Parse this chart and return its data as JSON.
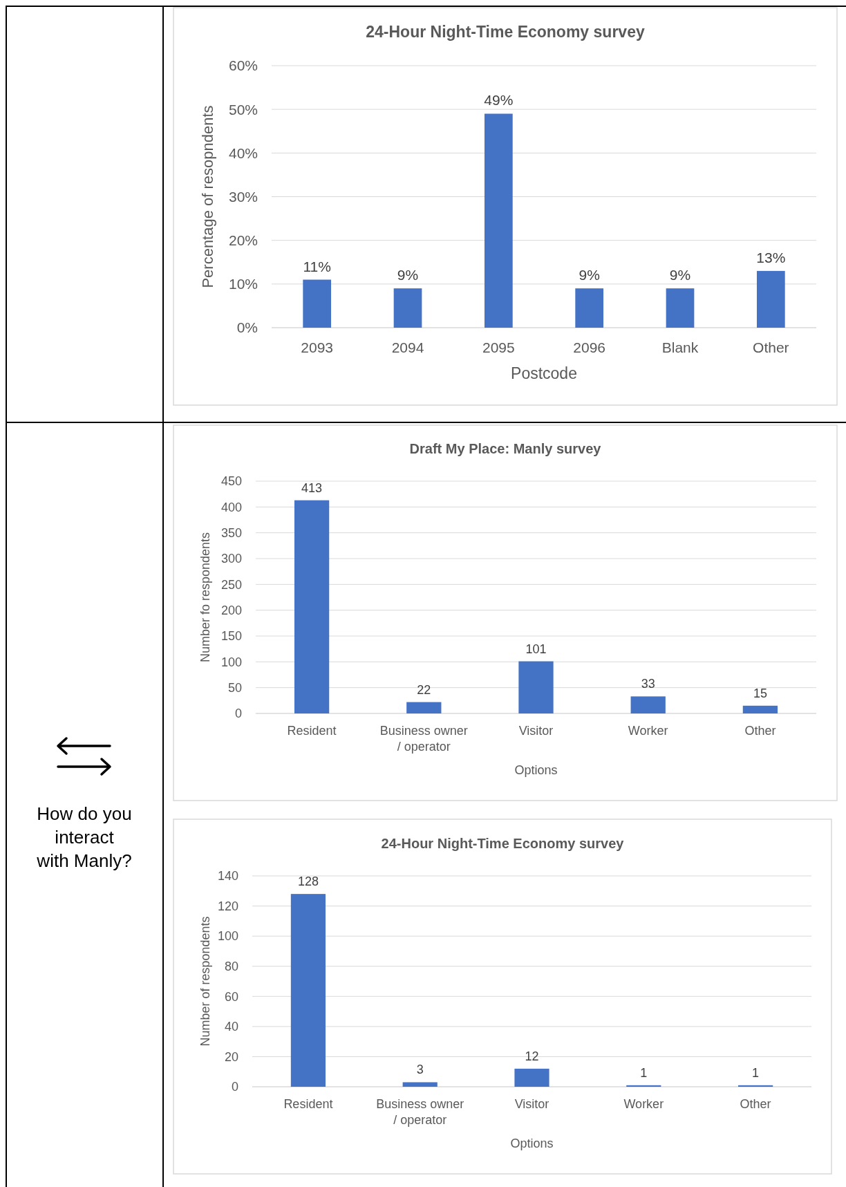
{
  "chart_data": [
    {
      "type": "bar",
      "title": "24-Hour Night-Time Economy survey",
      "xlabel": "Postcode",
      "ylabel": "Percentage of resopndents",
      "categories": [
        "2093",
        "2094",
        "2095",
        "2096",
        "Blank",
        "Other"
      ],
      "values": [
        11,
        9,
        49,
        9,
        9,
        13
      ],
      "color": "#4472c4",
      "ylim": [
        0,
        60
      ],
      "yticks": [
        {
          "value": 0,
          "label": "0%"
        },
        {
          "value": 10,
          "label": "10%"
        },
        {
          "value": 20,
          "label": "20%"
        },
        {
          "value": 30,
          "label": "30%"
        },
        {
          "value": 40,
          "label": "40%"
        },
        {
          "value": 50,
          "label": "50%"
        },
        {
          "value": 60,
          "label": "60%"
        }
      ],
      "value_labels": [
        "11%",
        "9%",
        "49%",
        "9%",
        "9%",
        "13%"
      ],
      "grid": "y"
    },
    {
      "type": "bar",
      "title": "Draft My Place: Manly survey",
      "xlabel": "Options",
      "ylabel": "Number fo respondents",
      "categories": [
        "Resident",
        "Business owner / operator",
        "Visitor",
        "Worker",
        "Other"
      ],
      "values": [
        413,
        22,
        101,
        33,
        15
      ],
      "color": "#4472c4",
      "ylim": [
        0,
        450
      ],
      "yticks": [
        0,
        50,
        100,
        150,
        200,
        250,
        300,
        350,
        400,
        450
      ],
      "data_labels": true,
      "grid": "y",
      "annotations": [
        "How do you interact with Manly?"
      ]
    },
    {
      "type": "bar",
      "title": "24-Hour Night-Time Economy survey",
      "xlabel": "Options",
      "ylabel": "Number of respondents",
      "categories": [
        "Resident",
        "Business owner / operator",
        "Visitor",
        "Worker",
        "Other"
      ],
      "values": [
        128,
        3,
        12,
        1,
        1
      ],
      "color": "#4472c4",
      "ylim": [
        0,
        140
      ],
      "yticks": [
        0,
        20,
        40,
        60,
        80,
        100,
        120,
        140
      ],
      "data_labels": true,
      "grid": "y"
    }
  ]
}
